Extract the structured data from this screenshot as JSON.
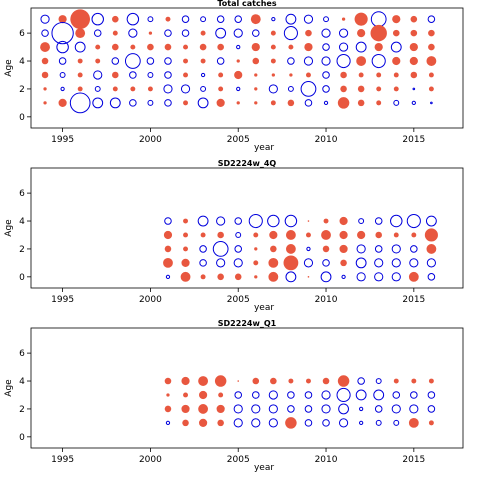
{
  "chart_data": [
    {
      "type": "scatter",
      "title": "Total catches",
      "xlabel": "year",
      "ylabel": "Age",
      "xlim": [
        1993.2,
        2017.8
      ],
      "ylim": [
        -0.8,
        7.8
      ],
      "xticks": [
        1995,
        2000,
        2005,
        2010,
        2015
      ],
      "yticks": [
        0,
        2,
        4,
        6
      ],
      "legend": "none",
      "grid": false,
      "colors": {
        "positive": "#e8573f",
        "negative": "#0000dd"
      },
      "note": "",
      "years": [
        1994,
        1995,
        1996,
        1997,
        1998,
        1999,
        2000,
        2001,
        2002,
        2003,
        2004,
        2005,
        2006,
        2007,
        2008,
        2009,
        2010,
        2011,
        2012,
        2013,
        2014,
        2015,
        2016
      ],
      "ages": [
        7,
        6,
        5,
        4,
        3,
        2,
        1
      ],
      "residuals": [
        [
          -0.5,
          0.5,
          1.2,
          -0.7,
          0.4,
          -0.7,
          -0.3,
          0.3,
          -0.4,
          -0.3,
          -0.4,
          -0.4,
          0.6,
          -0.2,
          -0.6,
          -0.5,
          -0.3,
          0.2,
          0.8,
          -0.9,
          0.5,
          0.4,
          -0.4
        ],
        [
          -0.4,
          -1.3,
          0.6,
          -0.4,
          0.3,
          -0.5,
          0.2,
          -0.4,
          -0.4,
          0.3,
          -0.6,
          -0.5,
          -0.4,
          0.3,
          -0.8,
          0.4,
          -0.5,
          -0.5,
          0.5,
          1.0,
          0.4,
          0.4,
          0.4
        ],
        [
          0.6,
          -0.7,
          -0.6,
          0.3,
          0.4,
          0.3,
          0.4,
          0.4,
          0.3,
          0.4,
          0.4,
          -0.2,
          0.5,
          0.3,
          0.3,
          0.5,
          -0.4,
          -0.5,
          -0.6,
          0.5,
          -0.6,
          0.5,
          0.4
        ],
        [
          0.4,
          -0.4,
          0.3,
          0.3,
          -0.4,
          -0.9,
          -0.4,
          -0.4,
          0.3,
          0.3,
          -0.4,
          0.2,
          0.4,
          0.3,
          -0.4,
          -0.5,
          -0.5,
          -0.8,
          0.6,
          -0.8,
          0.5,
          0.5,
          0.6
        ],
        [
          0.4,
          -0.3,
          0.3,
          -0.5,
          0.4,
          -0.4,
          -0.3,
          -0.4,
          0.3,
          -0.2,
          0.3,
          0.5,
          0.2,
          0.2,
          0.2,
          0.3,
          -0.4,
          0.4,
          0.3,
          0.3,
          0.3,
          0.4,
          0.3
        ],
        [
          0.2,
          -0.2,
          0.3,
          -0.3,
          0.3,
          0.3,
          0.3,
          -0.5,
          -0.5,
          -0.3,
          0.3,
          -0.2,
          0.2,
          -0.5,
          -0.3,
          -0.9,
          -0.4,
          0.4,
          0.4,
          0.3,
          0.3,
          -0.1,
          0.3
        ],
        [
          0.2,
          0.5,
          -1.2,
          -0.6,
          -0.6,
          -0.4,
          -0.3,
          -0.4,
          0.3,
          -0.6,
          0.5,
          0.2,
          0.2,
          0.3,
          0.4,
          -0.4,
          -0.2,
          0.7,
          0.4,
          0.3,
          -0.3,
          -0.2,
          -0.1
        ]
      ]
    },
    {
      "type": "scatter",
      "title": "SD2224w_4Q",
      "xlabel": "year",
      "ylabel": "Age",
      "xlim": [
        1993.2,
        2017.8
      ],
      "ylim": [
        -0.8,
        7.8
      ],
      "xticks": [
        1995,
        2000,
        2005,
        2010,
        2015
      ],
      "yticks": [
        0,
        2,
        4,
        6
      ],
      "legend": "none",
      "grid": false,
      "colors": {
        "positive": "#e8573f",
        "negative": "#0000dd"
      },
      "years": [
        2001,
        2002,
        2003,
        2004,
        2005,
        2006,
        2007,
        2008,
        2009,
        2010,
        2011,
        2012,
        2013,
        2014,
        2015,
        2016
      ],
      "ages": [
        4,
        3,
        2,
        1,
        0
      ],
      "residuals": [
        [
          -0.4,
          0.3,
          -0.6,
          -0.5,
          -0.4,
          -0.8,
          -0.7,
          -0.7,
          0.1,
          0.3,
          0.5,
          -0.3,
          -0.4,
          -0.7,
          -0.8,
          -0.6
        ],
        [
          0.5,
          0.3,
          0.3,
          0.4,
          -0.3,
          0.3,
          0.5,
          0.6,
          0.3,
          0.6,
          0.5,
          0.5,
          0.4,
          0.3,
          0.3,
          0.8
        ],
        [
          0.4,
          0.3,
          -0.4,
          -0.9,
          -0.4,
          0.2,
          0.4,
          0.6,
          -0.2,
          0.4,
          0.5,
          -0.5,
          -0.4,
          -0.5,
          -0.4,
          0.6
        ],
        [
          0.6,
          0.5,
          -0.4,
          -0.5,
          -0.5,
          0.3,
          0.6,
          0.9,
          -0.5,
          -0.4,
          0.4,
          -0.6,
          -0.5,
          -0.5,
          -0.5,
          -0.5
        ],
        [
          -0.2,
          0.6,
          0.3,
          0.4,
          0.4,
          0.2,
          0.6,
          -0.6,
          0.1,
          -0.6,
          -0.2,
          -0.5,
          -0.5,
          -0.5,
          0.6,
          -0.4
        ]
      ]
    },
    {
      "type": "scatter",
      "title": "SD2224w_Q1",
      "xlabel": "year",
      "ylabel": "Age",
      "xlim": [
        1993.2,
        2017.8
      ],
      "ylim": [
        -0.8,
        7.8
      ],
      "xticks": [
        1995,
        2000,
        2005,
        2010,
        2015
      ],
      "yticks": [
        0,
        2,
        4,
        6
      ],
      "legend": "none",
      "grid": false,
      "colors": {
        "positive": "#e8573f",
        "negative": "#0000dd"
      },
      "years": [
        2001,
        2002,
        2003,
        2004,
        2005,
        2006,
        2007,
        2008,
        2009,
        2010,
        2011,
        2012,
        2013,
        2014,
        2015,
        2016
      ],
      "ages": [
        4,
        3,
        2,
        1
      ],
      "residuals": [
        [
          0.4,
          0.5,
          0.6,
          0.7,
          0.1,
          0.4,
          0.4,
          0.3,
          0.3,
          0.4,
          0.7,
          -0.4,
          -0.3,
          0.3,
          0.3,
          0.3
        ],
        [
          0.2,
          0.3,
          0.5,
          0.3,
          -0.4,
          -0.4,
          -0.5,
          -0.4,
          -0.4,
          -0.5,
          -0.8,
          -0.6,
          -0.6,
          -0.4,
          -0.4,
          -0.4
        ],
        [
          0.4,
          0.5,
          0.6,
          0.5,
          -0.5,
          -0.5,
          -0.5,
          -0.4,
          -0.4,
          -0.5,
          -0.6,
          -0.2,
          -0.4,
          -0.5,
          -0.5,
          -0.4
        ],
        [
          -0.2,
          0.4,
          0.5,
          0.4,
          -0.5,
          -0.5,
          -0.5,
          0.7,
          -0.4,
          -0.4,
          -0.5,
          -0.2,
          -0.3,
          -0.3,
          0.6,
          0.3
        ]
      ]
    }
  ]
}
